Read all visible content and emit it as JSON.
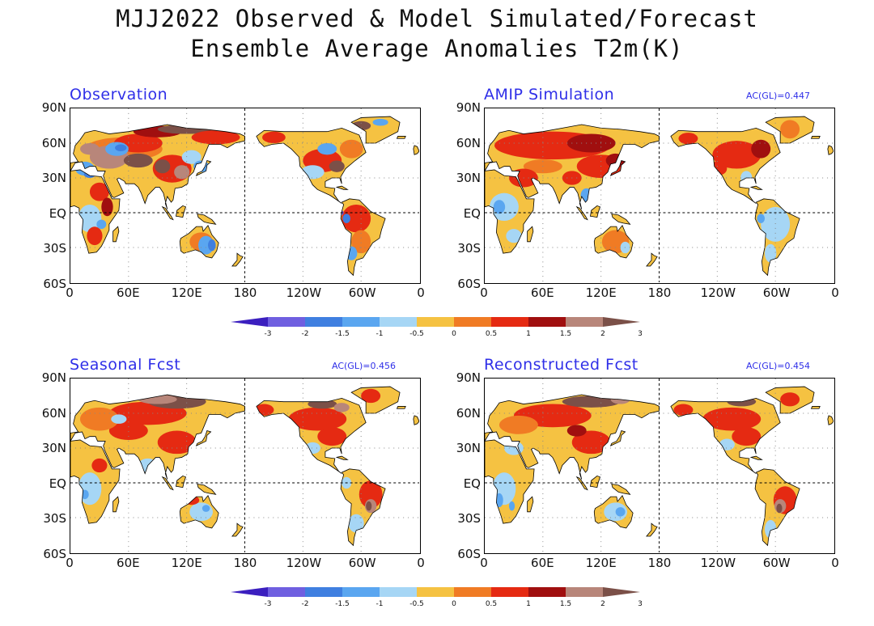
{
  "figure": {
    "title_line1": "MJJ2022 Observed & Model Simulated/Forecast",
    "title_line2": "Ensemble Average Anomalies T2m(K)"
  },
  "panels": [
    {
      "title": "Observation",
      "ac": ""
    },
    {
      "title": "AMIP Simulation",
      "ac": "AC(GL)=0.447"
    },
    {
      "title": "Seasonal Fcst",
      "ac": "AC(GL)=0.456"
    },
    {
      "title": "Reconstructed Fcst",
      "ac": "AC(GL)=0.454"
    }
  ],
  "axes": {
    "lat_labels": [
      "90N",
      "60N",
      "30N",
      "EQ",
      "30S",
      "60S"
    ],
    "lon_labels": [
      "0",
      "60E",
      "120E",
      "180",
      "120W",
      "60W",
      "0"
    ]
  },
  "colorbar": {
    "ticks": [
      "-3",
      "-2",
      "-1.5",
      "-1",
      "-0.5",
      "0",
      "0.5",
      "1",
      "1.5",
      "2",
      "3"
    ],
    "colors": [
      "#3b1fbf",
      "#6f5fe0",
      "#3f7fe0",
      "#5aa6f0",
      "#a6d6f5",
      "#f5c242",
      "#f07b24",
      "#e52a12",
      "#a00f0f",
      "#b8867a",
      "#7b5048"
    ]
  },
  "legend_colors": {
    "land": "#f5c242",
    "warm1": "#f07b24",
    "warm2": "#e52a12",
    "warm3": "#a00f0f",
    "warm4": "#b8867a",
    "warm5": "#7b5048",
    "cool1": "#a6d6f5",
    "cool2": "#5aa6f0",
    "cool3": "#3f7fe0",
    "cool4": "#6f5fe0",
    "title_blue": "#2f2fe8"
  }
}
